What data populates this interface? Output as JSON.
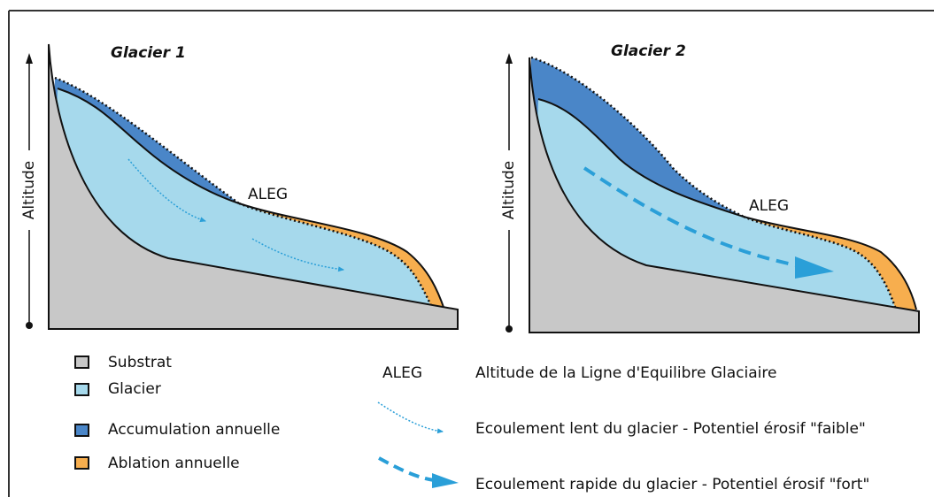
{
  "panels": [
    {
      "title": "Glacier 1",
      "axis_label": "Altitude",
      "eq_label": "ALEG"
    },
    {
      "title": "Glacier 2",
      "axis_label": "Altitude",
      "eq_label": "ALEG"
    }
  ],
  "legend": {
    "items": [
      "Substrat",
      "Glacier",
      "Accumulation annuelle",
      "Ablation annuelle"
    ]
  },
  "key": [
    {
      "abbr": "ALEG",
      "text": "Altitude de la Ligne d'Equilibre Glaciaire"
    },
    {
      "text": "Ecoulement lent du glacier - Potentiel érosif \"faible\""
    },
    {
      "text": "Ecoulement rapide du glacier - Potentiel érosif \"fort\""
    }
  ]
}
